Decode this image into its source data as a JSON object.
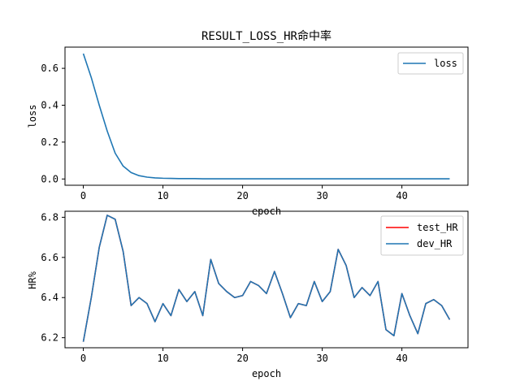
{
  "chart_data": [
    {
      "type": "line",
      "title": "RESULT_LOSS_HR命中率",
      "xlabel": "epoch",
      "ylabel": "loss",
      "xlim": [
        -2.3,
        48.3
      ],
      "ylim": [
        -0.034,
        0.715
      ],
      "xticks": [
        0,
        10,
        20,
        30,
        40
      ],
      "yticks": [
        0.0,
        0.2,
        0.4,
        0.6
      ],
      "ytick_labels": [
        "0.0",
        "0.2",
        "0.4",
        "0.6"
      ],
      "legend": "top-right",
      "series": [
        {
          "name": "loss",
          "color": "#1f77b4",
          "x": [
            0,
            1,
            2,
            3,
            4,
            5,
            6,
            7,
            8,
            9,
            10,
            11,
            12,
            13,
            14,
            15,
            16,
            17,
            18,
            19,
            20,
            21,
            22,
            23,
            24,
            25,
            26,
            27,
            28,
            29,
            30,
            31,
            32,
            33,
            34,
            35,
            36,
            37,
            38,
            39,
            40,
            41,
            42,
            43,
            44,
            45,
            46
          ],
          "values": [
            0.68,
            0.55,
            0.4,
            0.26,
            0.14,
            0.07,
            0.035,
            0.018,
            0.01,
            0.006,
            0.004,
            0.003,
            0.002,
            0.002,
            0.002,
            0.001,
            0.001,
            0.001,
            0.001,
            0.001,
            0.001,
            0.001,
            0.001,
            0.001,
            0.001,
            0.001,
            0.001,
            0.001,
            0.001,
            0.001,
            0.001,
            0.001,
            0.001,
            0.001,
            0.001,
            0.001,
            0.001,
            0.001,
            0.001,
            0.001,
            0.001,
            0.001,
            0.001,
            0.001,
            0.001,
            0.001,
            0.001
          ]
        }
      ]
    },
    {
      "type": "line",
      "title": "",
      "xlabel": "epoch",
      "ylabel": "HR%",
      "xlim": [
        -2.3,
        48.3
      ],
      "ylim": [
        6.15,
        6.83
      ],
      "xticks": [
        0,
        10,
        20,
        30,
        40
      ],
      "yticks": [
        6.2,
        6.4,
        6.6,
        6.8
      ],
      "ytick_labels": [
        "6.2",
        "6.4",
        "6.6",
        "6.8"
      ],
      "legend": "top-right",
      "series": [
        {
          "name": "test_HR",
          "color": "#ff0000",
          "x": [
            0,
            1,
            2,
            3,
            4,
            5,
            6,
            7,
            8,
            9,
            10,
            11,
            12,
            13,
            14,
            15,
            16,
            17,
            18,
            19,
            20,
            21,
            22,
            23,
            24,
            25,
            26,
            27,
            28,
            29,
            30,
            31,
            32,
            33,
            34,
            35,
            36,
            37,
            38,
            39,
            40,
            41,
            42,
            43,
            44,
            45,
            46
          ],
          "values": [
            6.18,
            6.4,
            6.65,
            6.81,
            6.79,
            6.63,
            6.36,
            6.4,
            6.37,
            6.28,
            6.37,
            6.31,
            6.44,
            6.38,
            6.43,
            6.31,
            6.59,
            6.47,
            6.43,
            6.4,
            6.41,
            6.48,
            6.46,
            6.42,
            6.53,
            6.42,
            6.3,
            6.37,
            6.36,
            6.48,
            6.38,
            6.43,
            6.64,
            6.56,
            6.4,
            6.45,
            6.41,
            6.48,
            6.24,
            6.21,
            6.42,
            6.31,
            6.22,
            6.37,
            6.39,
            6.36,
            6.29
          ]
        },
        {
          "name": "dev_HR",
          "color": "#1f77b4",
          "x": [
            0,
            1,
            2,
            3,
            4,
            5,
            6,
            7,
            8,
            9,
            10,
            11,
            12,
            13,
            14,
            15,
            16,
            17,
            18,
            19,
            20,
            21,
            22,
            23,
            24,
            25,
            26,
            27,
            28,
            29,
            30,
            31,
            32,
            33,
            34,
            35,
            36,
            37,
            38,
            39,
            40,
            41,
            42,
            43,
            44,
            45,
            46
          ],
          "values": [
            6.18,
            6.4,
            6.65,
            6.81,
            6.79,
            6.63,
            6.36,
            6.4,
            6.37,
            6.28,
            6.37,
            6.31,
            6.44,
            6.38,
            6.43,
            6.31,
            6.59,
            6.47,
            6.43,
            6.4,
            6.41,
            6.48,
            6.46,
            6.42,
            6.53,
            6.42,
            6.3,
            6.37,
            6.36,
            6.48,
            6.38,
            6.43,
            6.64,
            6.56,
            6.4,
            6.45,
            6.41,
            6.48,
            6.24,
            6.21,
            6.42,
            6.31,
            6.22,
            6.37,
            6.39,
            6.36,
            6.29
          ]
        }
      ]
    }
  ]
}
